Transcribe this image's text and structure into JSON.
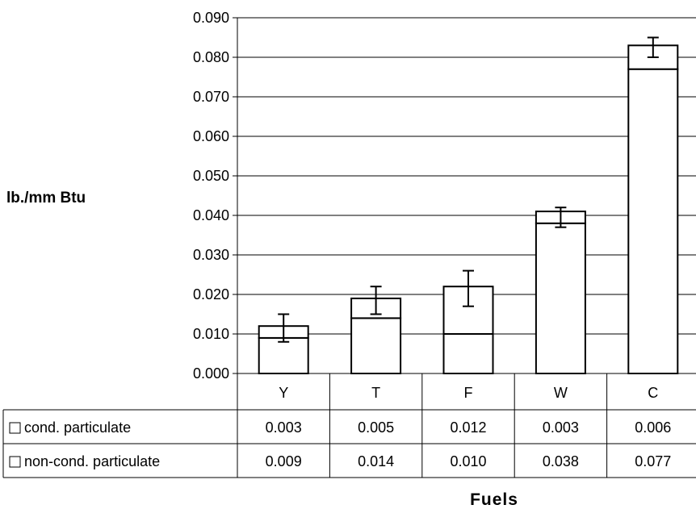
{
  "chart_data": {
    "type": "bar",
    "stacked": true,
    "title": "",
    "xlabel": "Fuels",
    "ylabel": "lb./mm Btu",
    "ylim": [
      0,
      0.09
    ],
    "y_ticks": [
      "0.000",
      "0.010",
      "0.020",
      "0.030",
      "0.040",
      "0.050",
      "0.060",
      "0.070",
      "0.080",
      "0.090"
    ],
    "grid": "horizontal",
    "categories": [
      "Y",
      "T",
      "F",
      "W",
      "C"
    ],
    "series": [
      {
        "name": "non-cond. particulate",
        "values": [
          0.009,
          0.014,
          0.01,
          0.038,
          0.077
        ],
        "labels": [
          "0.009",
          "0.014",
          "0.010",
          "0.038",
          "0.077"
        ]
      },
      {
        "name": "cond. particulate",
        "values": [
          0.003,
          0.005,
          0.012,
          0.003,
          0.006
        ],
        "labels": [
          "0.003",
          "0.005",
          "0.012",
          "0.003",
          "0.006"
        ]
      }
    ],
    "error_bars": [
      {
        "low": 0.008,
        "high": 0.015
      },
      {
        "low": 0.015,
        "high": 0.022
      },
      {
        "low": 0.017,
        "high": 0.026
      },
      {
        "low": 0.037,
        "high": 0.042
      },
      {
        "low": 0.08,
        "high": 0.085
      }
    ],
    "table_rows": [
      "cond. particulate",
      "non-cond. particulate"
    ],
    "colors": {
      "bar_fill": "#ffffff",
      "stroke": "#000000"
    }
  }
}
